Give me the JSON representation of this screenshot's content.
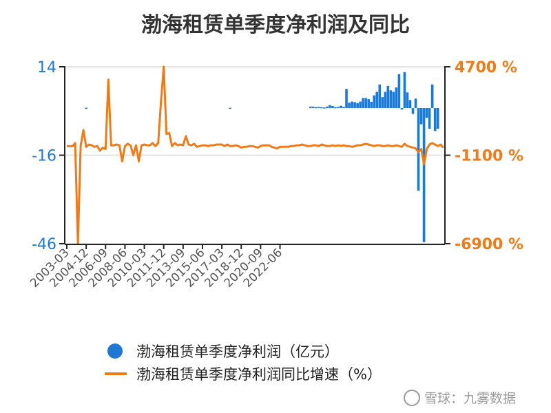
{
  "chart_data": {
    "type": "bar+line",
    "title": "渤海租赁单季度净利润及同比",
    "x_tick_labels": [
      "2003-03",
      "2004-12",
      "2006-09",
      "2008-06",
      "2010-03",
      "2011-12",
      "2013-09",
      "2015-06",
      "2017-03",
      "2018-12",
      "2020-09",
      "2022-06"
    ],
    "left_axis": {
      "ticks": [
        "14",
        "-16",
        "-46"
      ],
      "range": [
        -46,
        14
      ],
      "color": "#1f78d1"
    },
    "right_axis": {
      "ticks": [
        "4700 %",
        "-1100 %",
        "-6900 %"
      ],
      "range": [
        -6900,
        4700
      ],
      "color": "#f07b16"
    },
    "series": [
      {
        "name": "渤海租赁单季度净利润（亿元）",
        "kind": "bar",
        "axis": "left",
        "color": "#1f78d1",
        "points": [
          {
            "q": 7,
            "v": 0.1
          },
          {
            "q": 59,
            "v": 0.1
          },
          {
            "q": 88,
            "v": 0.5
          },
          {
            "q": 89,
            "v": 0.5
          },
          {
            "q": 90,
            "v": 0.3
          },
          {
            "q": 91,
            "v": 0.4
          },
          {
            "q": 92,
            "v": 0.3
          },
          {
            "q": 93,
            "v": 0.2
          },
          {
            "q": 94,
            "v": 0.5
          },
          {
            "q": 95,
            "v": 1.0
          },
          {
            "q": 96,
            "v": 0.7
          },
          {
            "q": 97,
            "v": 0.3
          },
          {
            "q": 98,
            "v": 0.4
          },
          {
            "q": 99,
            "v": 0.8
          },
          {
            "q": 100,
            "v": 0.4
          },
          {
            "q": 101,
            "v": 6.5
          },
          {
            "q": 102,
            "v": 1.8
          },
          {
            "q": 103,
            "v": 2.2
          },
          {
            "q": 104,
            "v": 2.0
          },
          {
            "q": 105,
            "v": 1.7
          },
          {
            "q": 106,
            "v": 2.2
          },
          {
            "q": 107,
            "v": 3.4
          },
          {
            "q": 108,
            "v": 3.4
          },
          {
            "q": 109,
            "v": 3.0
          },
          {
            "q": 110,
            "v": 2.1
          },
          {
            "q": 111,
            "v": 4.3
          },
          {
            "q": 112,
            "v": 5.5
          },
          {
            "q": 113,
            "v": 8.0
          },
          {
            "q": 114,
            "v": 3.7
          },
          {
            "q": 115,
            "v": 5.5
          },
          {
            "q": 116,
            "v": 7.5
          },
          {
            "q": 117,
            "v": 6.0
          },
          {
            "q": 118,
            "v": 5.5
          },
          {
            "q": 119,
            "v": 7.0
          },
          {
            "q": 120,
            "v": 11.5
          },
          {
            "q": 121,
            "v": -0.5
          },
          {
            "q": 122,
            "v": 12.2
          },
          {
            "q": 123,
            "v": 5.3
          },
          {
            "q": 124,
            "v": 2.7
          },
          {
            "q": 125,
            "v": -2.0
          },
          {
            "q": 126,
            "v": 3.2
          },
          {
            "q": 127,
            "v": -28.0
          },
          {
            "q": 128,
            "v": -5.5
          },
          {
            "q": 129,
            "v": -45.5
          },
          {
            "q": 130,
            "v": -3.3
          },
          {
            "q": 131,
            "v": -7.0
          },
          {
            "q": 132,
            "v": 8.0
          },
          {
            "q": 133,
            "v": -7.8
          },
          {
            "q": 134,
            "v": -7.0
          }
        ]
      },
      {
        "name": "渤海租赁单季度净利润同比增速（%）",
        "kind": "line",
        "axis": "right",
        "color": "#f07b16",
        "points": [
          {
            "q": 0,
            "v": -500
          },
          {
            "q": 1,
            "v": -500
          },
          {
            "q": 2,
            "v": -520
          },
          {
            "q": 3,
            "v": -300
          },
          {
            "q": 4,
            "v": -6900
          },
          {
            "q": 5,
            "v": -500
          },
          {
            "q": 6,
            "v": 550
          },
          {
            "q": 7,
            "v": -550
          },
          {
            "q": 8,
            "v": -400
          },
          {
            "q": 9,
            "v": -450
          },
          {
            "q": 10,
            "v": -550
          },
          {
            "q": 11,
            "v": -500
          },
          {
            "q": 12,
            "v": -800
          },
          {
            "q": 13,
            "v": -600
          },
          {
            "q": 14,
            "v": -700
          },
          {
            "q": 15,
            "v": 3850
          },
          {
            "q": 16,
            "v": -450
          },
          {
            "q": 17,
            "v": -450
          },
          {
            "q": 18,
            "v": -400
          },
          {
            "q": 19,
            "v": -450
          },
          {
            "q": 20,
            "v": -1500
          },
          {
            "q": 21,
            "v": -500
          },
          {
            "q": 22,
            "v": -350
          },
          {
            "q": 23,
            "v": -450
          },
          {
            "q": 24,
            "v": -1100
          },
          {
            "q": 25,
            "v": -450
          },
          {
            "q": 26,
            "v": -1500
          },
          {
            "q": 27,
            "v": -450
          },
          {
            "q": 28,
            "v": -400
          },
          {
            "q": 29,
            "v": -450
          },
          {
            "q": 30,
            "v": -450
          },
          {
            "q": 31,
            "v": -300
          },
          {
            "q": 32,
            "v": -500
          },
          {
            "q": 33,
            "v": -300
          },
          {
            "q": 34,
            "v": 2400
          },
          {
            "q": 35,
            "v": 4700
          },
          {
            "q": 36,
            "v": 300
          },
          {
            "q": 37,
            "v": 350
          },
          {
            "q": 38,
            "v": -500
          },
          {
            "q": 39,
            "v": -300
          },
          {
            "q": 40,
            "v": -450
          },
          {
            "q": 41,
            "v": -400
          },
          {
            "q": 42,
            "v": -450
          },
          {
            "q": 43,
            "v": 150
          },
          {
            "q": 44,
            "v": -400
          },
          {
            "q": 45,
            "v": -450
          },
          {
            "q": 46,
            "v": -350
          },
          {
            "q": 47,
            "v": -550
          },
          {
            "q": 48,
            "v": -500
          },
          {
            "q": 49,
            "v": -450
          },
          {
            "q": 50,
            "v": -450
          },
          {
            "q": 51,
            "v": -500
          },
          {
            "q": 52,
            "v": -450
          },
          {
            "q": 53,
            "v": -450
          },
          {
            "q": 54,
            "v": -400
          },
          {
            "q": 55,
            "v": -400
          },
          {
            "q": 56,
            "v": -400
          },
          {
            "q": 57,
            "v": -500
          },
          {
            "q": 58,
            "v": -400
          },
          {
            "q": 59,
            "v": -500
          },
          {
            "q": 60,
            "v": -500
          },
          {
            "q": 61,
            "v": -450
          },
          {
            "q": 62,
            "v": -500
          },
          {
            "q": 63,
            "v": -600
          },
          {
            "q": 64,
            "v": -550
          },
          {
            "q": 65,
            "v": -550
          },
          {
            "q": 66,
            "v": -500
          },
          {
            "q": 67,
            "v": -500
          },
          {
            "q": 68,
            "v": -550
          },
          {
            "q": 69,
            "v": -600
          },
          {
            "q": 70,
            "v": -500
          },
          {
            "q": 71,
            "v": -450
          },
          {
            "q": 72,
            "v": -450
          },
          {
            "q": 73,
            "v": -450
          },
          {
            "q": 74,
            "v": -550
          },
          {
            "q": 75,
            "v": -600
          },
          {
            "q": 76,
            "v": -650
          },
          {
            "q": 77,
            "v": -550
          },
          {
            "q": 78,
            "v": -550
          },
          {
            "q": 79,
            "v": -550
          },
          {
            "q": 80,
            "v": -550
          },
          {
            "q": 81,
            "v": -500
          },
          {
            "q": 82,
            "v": -500
          },
          {
            "q": 83,
            "v": -450
          },
          {
            "q": 84,
            "v": -450
          },
          {
            "q": 85,
            "v": -400
          },
          {
            "q": 86,
            "v": -450
          },
          {
            "q": 87,
            "v": -500
          },
          {
            "q": 88,
            "v": -500
          },
          {
            "q": 89,
            "v": -450
          },
          {
            "q": 90,
            "v": -450
          },
          {
            "q": 91,
            "v": -500
          },
          {
            "q": 92,
            "v": -400
          },
          {
            "q": 93,
            "v": -450
          },
          {
            "q": 94,
            "v": -500
          },
          {
            "q": 95,
            "v": -500
          },
          {
            "q": 96,
            "v": -450
          },
          {
            "q": 97,
            "v": -500
          },
          {
            "q": 98,
            "v": -450
          },
          {
            "q": 99,
            "v": -500
          },
          {
            "q": 100,
            "v": -450
          },
          {
            "q": 101,
            "v": -500
          },
          {
            "q": 102,
            "v": -500
          },
          {
            "q": 103,
            "v": -550
          },
          {
            "q": 104,
            "v": -500
          },
          {
            "q": 105,
            "v": -450
          },
          {
            "q": 106,
            "v": -450
          },
          {
            "q": 107,
            "v": -400
          },
          {
            "q": 108,
            "v": -350
          },
          {
            "q": 109,
            "v": -400
          },
          {
            "q": 110,
            "v": -450
          },
          {
            "q": 111,
            "v": -500
          },
          {
            "q": 112,
            "v": -450
          },
          {
            "q": 113,
            "v": -450
          },
          {
            "q": 114,
            "v": -500
          },
          {
            "q": 115,
            "v": -500
          },
          {
            "q": 116,
            "v": -450
          },
          {
            "q": 117,
            "v": -500
          },
          {
            "q": 118,
            "v": -500
          },
          {
            "q": 119,
            "v": -450
          },
          {
            "q": 120,
            "v": -500
          },
          {
            "q": 121,
            "v": -550
          },
          {
            "q": 122,
            "v": -350
          },
          {
            "q": 123,
            "v": -500
          },
          {
            "q": 124,
            "v": -550
          },
          {
            "q": 125,
            "v": -600
          },
          {
            "q": 126,
            "v": -650
          },
          {
            "q": 127,
            "v": -900
          },
          {
            "q": 128,
            "v": -700
          },
          {
            "q": 129,
            "v": -1700
          },
          {
            "q": 130,
            "v": -700
          },
          {
            "q": 131,
            "v": -400
          },
          {
            "q": 132,
            "v": -300
          },
          {
            "q": 133,
            "v": -400
          },
          {
            "q": 134,
            "v": -500
          },
          {
            "q": 135,
            "v": -400
          },
          {
            "q": 136,
            "v": -600
          }
        ]
      }
    ],
    "grid": "horizontal",
    "legend": "bottom",
    "watermark": "雪球：九雾数据"
  }
}
